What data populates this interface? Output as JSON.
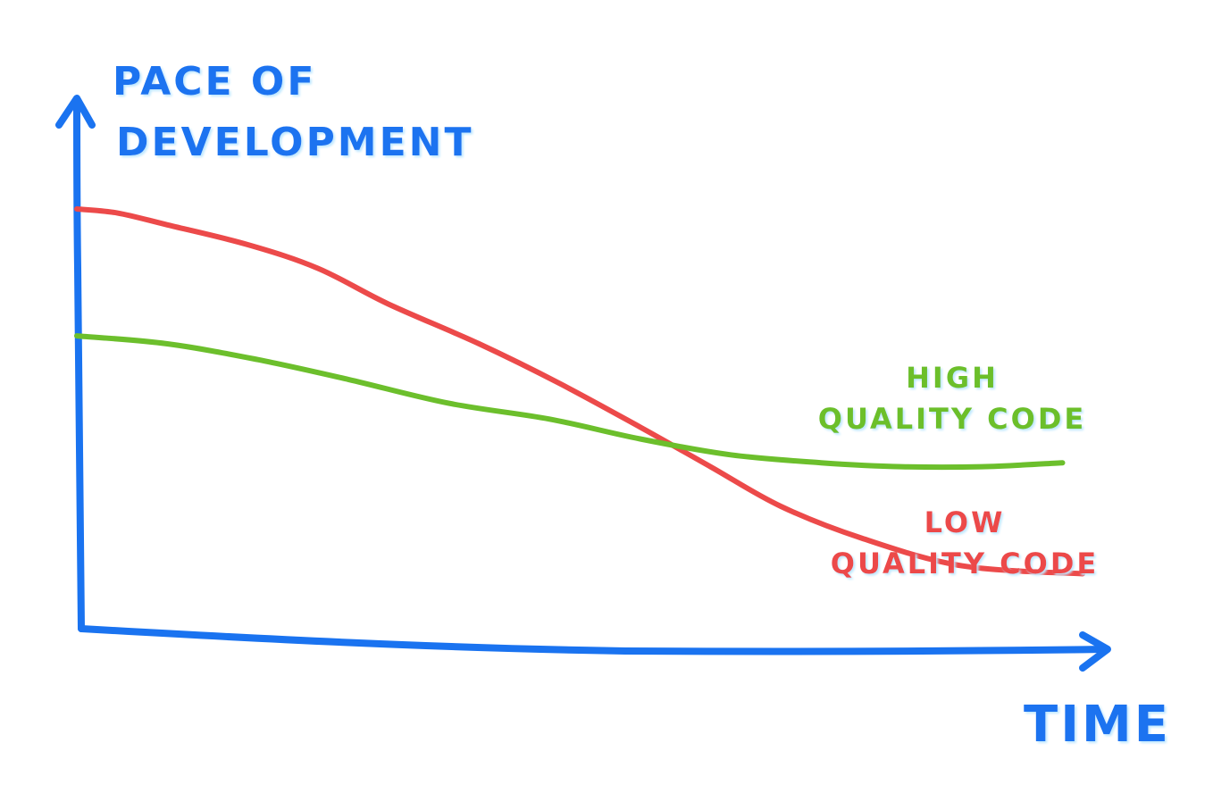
{
  "chart_data": {
    "type": "line",
    "xlabel": "TIME",
    "ylabel_lines": [
      "PACE OF",
      "DEVELOPMENT"
    ],
    "xlim": [
      0,
      100
    ],
    "ylim": [
      0,
      100
    ],
    "grid": false,
    "legend": "inline-right",
    "axis_color": "#1a73f0",
    "series": [
      {
        "label_lines": [
          "LOW",
          "QUALITY CODE"
        ],
        "color": "#ec4a4a",
        "label_color": "#ec4a4a",
        "points": [
          [
            0,
            100
          ],
          [
            4,
            99
          ],
          [
            9,
            96
          ],
          [
            17,
            91
          ],
          [
            24,
            85
          ],
          [
            31,
            76
          ],
          [
            40,
            66
          ],
          [
            48,
            56
          ],
          [
            56,
            45
          ],
          [
            63,
            35
          ],
          [
            70,
            25
          ],
          [
            78,
            17
          ],
          [
            88,
            10
          ],
          [
            100,
            8
          ]
        ]
      },
      {
        "label_lines": [
          "HIGH",
          "QUALITY CODE"
        ],
        "color": "#6cbf2c",
        "label_color": "#6cbf2c",
        "points": [
          [
            0,
            68
          ],
          [
            9,
            66
          ],
          [
            18,
            62
          ],
          [
            27,
            57
          ],
          [
            37,
            51
          ],
          [
            47,
            47
          ],
          [
            56,
            42
          ],
          [
            65,
            38
          ],
          [
            74,
            36
          ],
          [
            82,
            35
          ],
          [
            90,
            35
          ],
          [
            98,
            36
          ]
        ]
      }
    ]
  }
}
